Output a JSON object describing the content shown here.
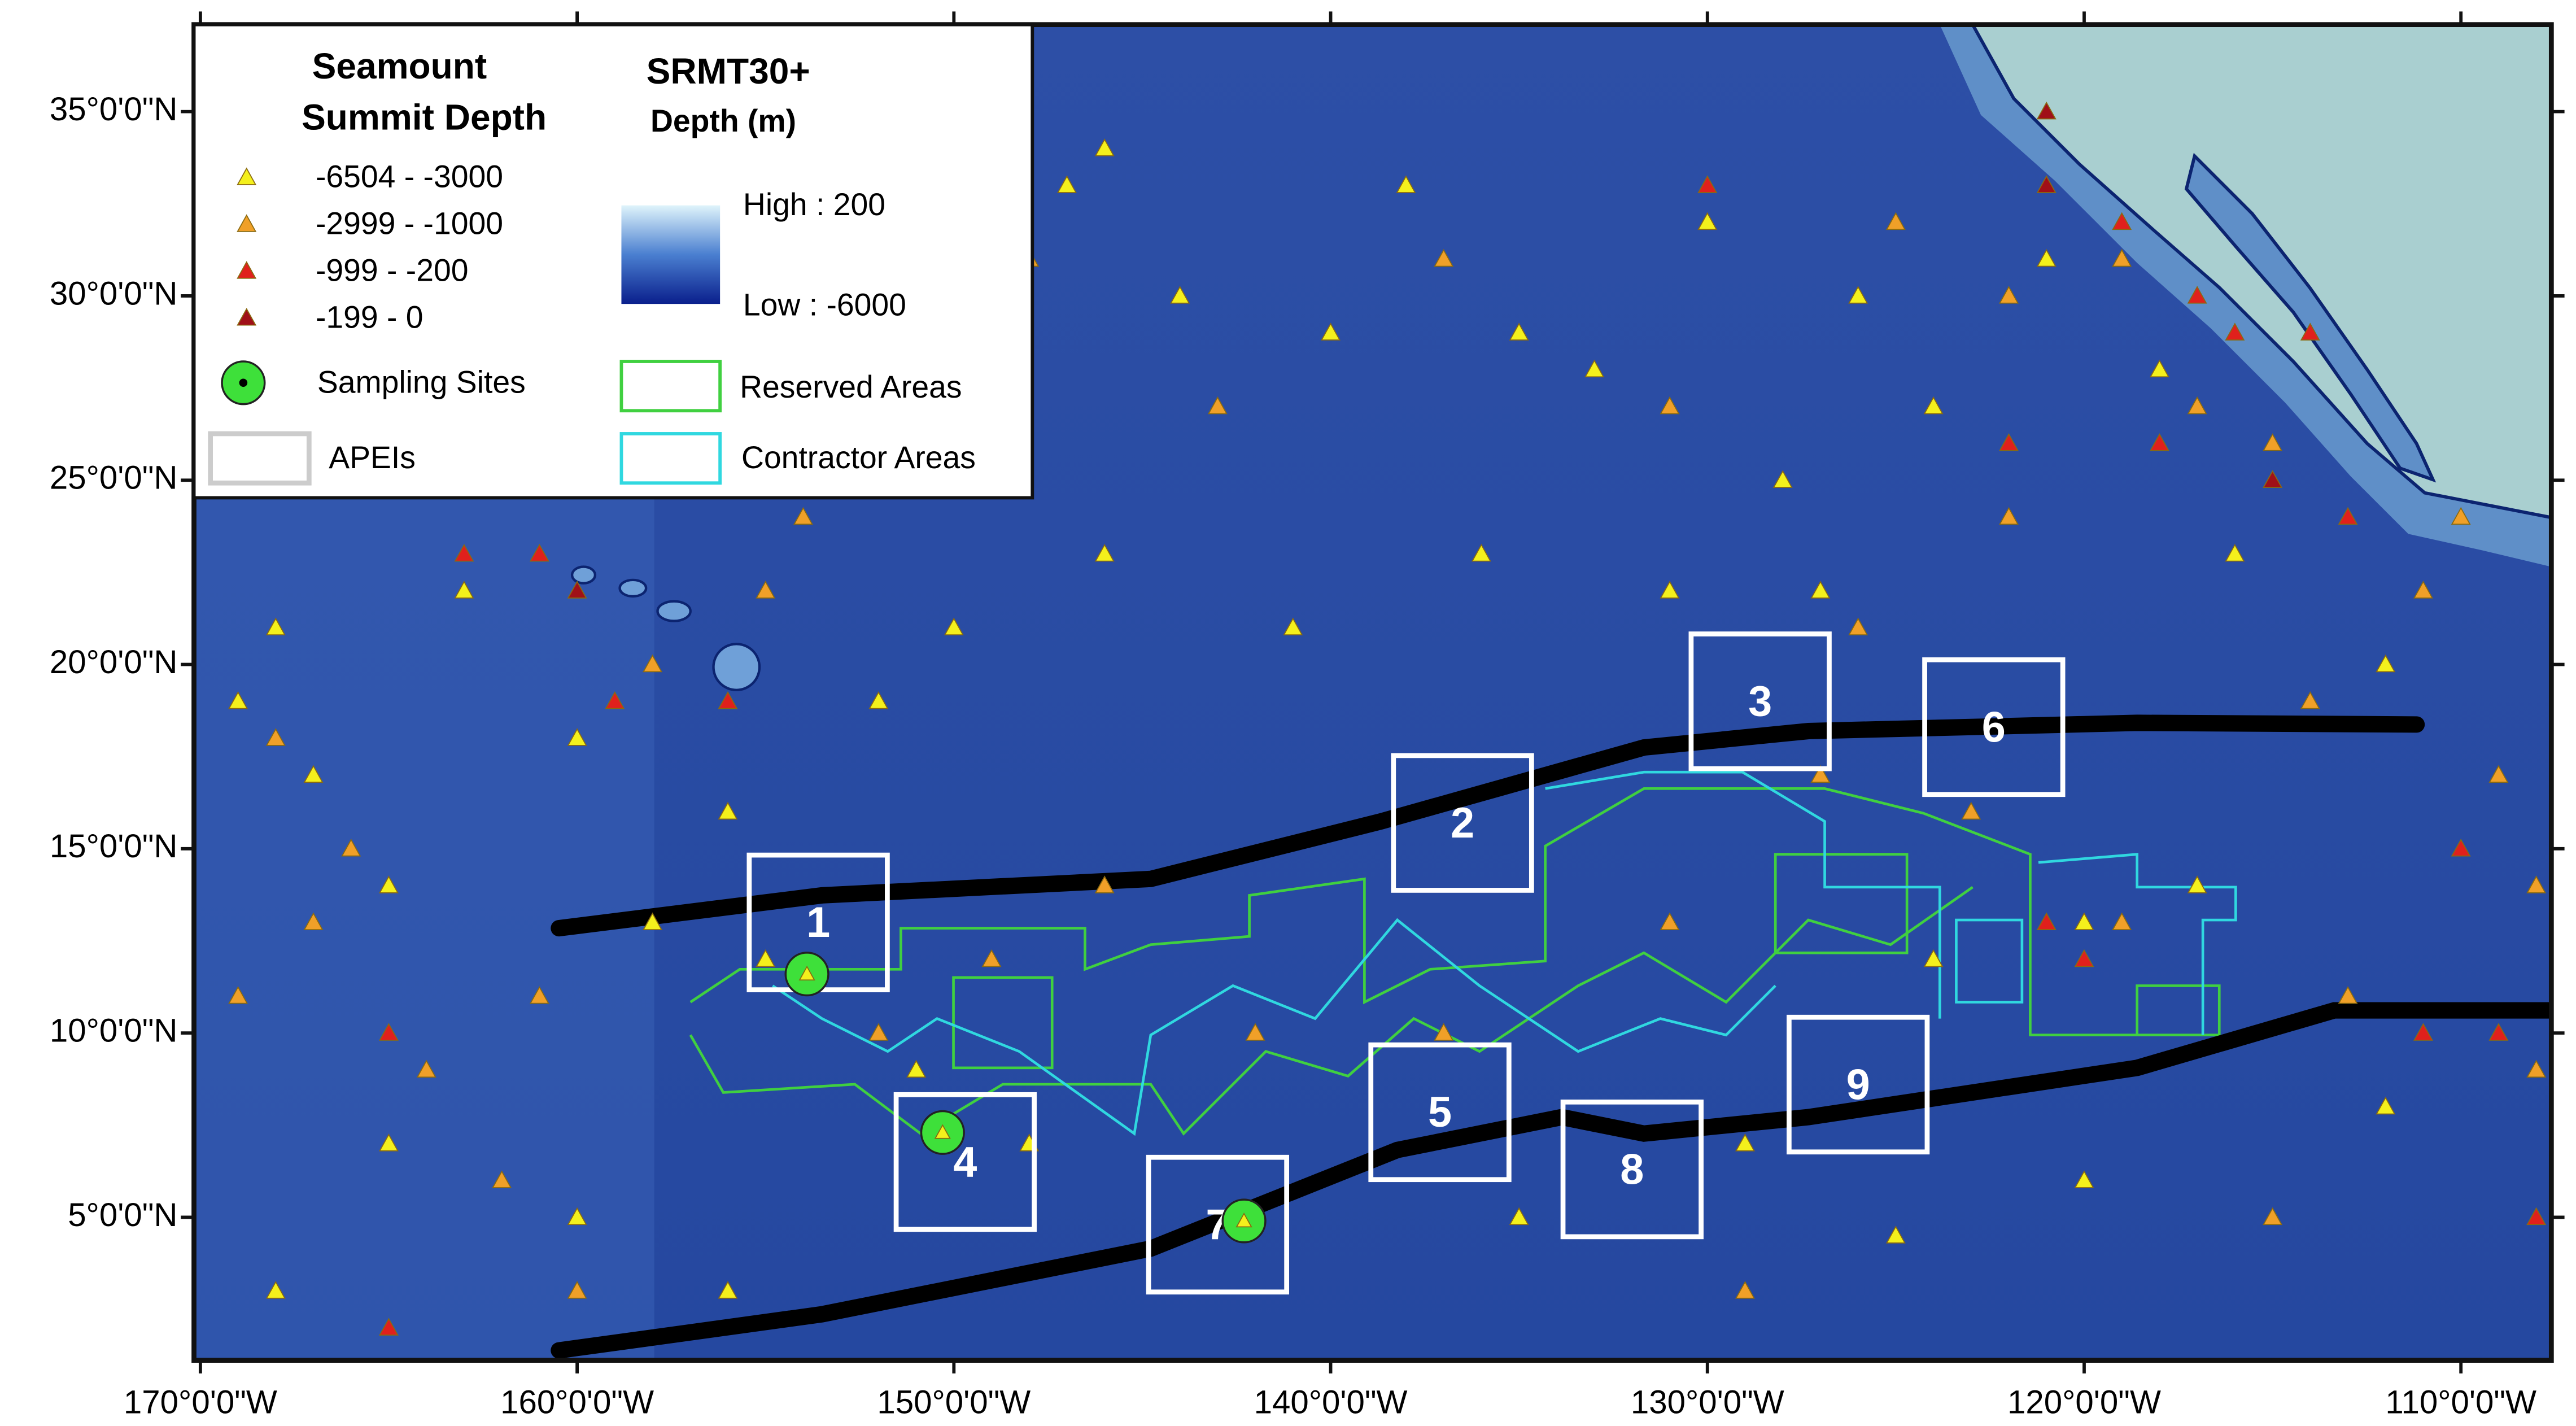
{
  "map": {
    "xlim": [
      -170.17,
      -107.6
    ],
    "ylim": [
      1.12,
      37.36
    ],
    "lon_ticks": [
      {
        "value": -170,
        "label": "170°0'0\"W"
      },
      {
        "value": -160,
        "label": "160°0'0\"W"
      },
      {
        "value": -150,
        "label": "150°0'0\"W"
      },
      {
        "value": -140,
        "label": "140°0'0\"W"
      },
      {
        "value": -130,
        "label": "130°0'0\"W"
      },
      {
        "value": -120,
        "label": "120°0'0\"W"
      },
      {
        "value": -110,
        "label": "110°0'0\"W"
      }
    ],
    "lat_ticks": [
      {
        "value": 5,
        "label": "5°0'0\"N"
      },
      {
        "value": 10,
        "label": "10°0'0\"N"
      },
      {
        "value": 15,
        "label": "15°0'0\"N"
      },
      {
        "value": 20,
        "label": "20°0'0\"N"
      },
      {
        "value": 25,
        "label": "25°0'0\"N"
      },
      {
        "value": 30,
        "label": "30°0'0\"N"
      },
      {
        "value": 35,
        "label": "35°0'0\"N"
      }
    ],
    "seamount_classes": [
      {
        "label": "-6504 - -3000",
        "color": "#f4f01c",
        "points": [
          [
            -169,
            19
          ],
          [
            -168,
            21
          ],
          [
            -167,
            17
          ],
          [
            -165,
            14
          ],
          [
            -163,
            22
          ],
          [
            -160,
            18
          ],
          [
            -158,
            13
          ],
          [
            -156,
            16
          ],
          [
            -152,
            19
          ],
          [
            -150,
            21
          ],
          [
            -147,
            33
          ],
          [
            -146,
            34
          ],
          [
            -144,
            30
          ],
          [
            -140,
            29
          ],
          [
            -138,
            33
          ],
          [
            -135,
            29
          ],
          [
            -133,
            28
          ],
          [
            -130,
            32
          ],
          [
            -128,
            25
          ],
          [
            -126,
            30
          ],
          [
            -124,
            27
          ],
          [
            -121,
            31
          ],
          [
            -118,
            28
          ],
          [
            -116,
            23
          ],
          [
            -112,
            20
          ],
          [
            -146,
            23
          ],
          [
            -141,
            21
          ],
          [
            -136,
            23
          ],
          [
            -131,
            22
          ],
          [
            -127,
            22
          ],
          [
            -124,
            12
          ],
          [
            -120,
            13
          ],
          [
            -117,
            14
          ],
          [
            -148,
            7
          ],
          [
            -151,
            9
          ],
          [
            -155,
            12
          ],
          [
            -135,
            5
          ],
          [
            -129,
            7
          ],
          [
            -125,
            4.5
          ],
          [
            -120,
            6
          ],
          [
            -112,
            8
          ],
          [
            -160,
            5
          ],
          [
            -165,
            7
          ],
          [
            -168,
            3
          ],
          [
            -156,
            3
          ]
        ]
      },
      {
        "label": "-2999 - -1000",
        "color": "#f0a028",
        "points": [
          [
            -169,
            11
          ],
          [
            -167,
            13
          ],
          [
            -164,
            9
          ],
          [
            -162,
            6
          ],
          [
            -160,
            3
          ],
          [
            -166,
            15
          ],
          [
            -168,
            18
          ],
          [
            -158,
            20
          ],
          [
            -155,
            22
          ],
          [
            -154,
            24
          ],
          [
            -148,
            31
          ],
          [
            -143,
            27
          ],
          [
            -137,
            31
          ],
          [
            -131,
            27
          ],
          [
            -125,
            32
          ],
          [
            -122,
            30
          ],
          [
            -119,
            31
          ],
          [
            -117,
            27
          ],
          [
            -115,
            26
          ],
          [
            -111,
            22
          ],
          [
            -109,
            17
          ],
          [
            -108,
            14
          ],
          [
            -113,
            11
          ],
          [
            -119,
            13
          ],
          [
            -123,
            16
          ],
          [
            -127,
            17
          ],
          [
            -131,
            13
          ],
          [
            -137,
            10
          ],
          [
            -142,
            10
          ],
          [
            -146,
            14
          ],
          [
            -149,
            12
          ],
          [
            -152,
            10
          ],
          [
            -126,
            21
          ],
          [
            -122,
            24
          ],
          [
            -114,
            19
          ],
          [
            -110,
            24
          ],
          [
            -108,
            9
          ],
          [
            -115,
            5
          ],
          [
            -129,
            3
          ],
          [
            -161,
            11
          ]
        ]
      },
      {
        "label": "-999 - -200",
        "color": "#e0201c",
        "points": [
          [
            -165,
            10
          ],
          [
            -163,
            23
          ],
          [
            -161,
            23
          ],
          [
            -159,
            19
          ],
          [
            -119,
            32
          ],
          [
            -117,
            30
          ],
          [
            -116,
            29
          ],
          [
            -114,
            29
          ],
          [
            -122,
            26
          ],
          [
            -118,
            26
          ],
          [
            -113,
            24
          ],
          [
            -110,
            15
          ],
          [
            -111,
            10
          ],
          [
            -109,
            10
          ],
          [
            -108,
            5
          ],
          [
            -120,
            12
          ],
          [
            -121,
            13
          ],
          [
            -156,
            19
          ],
          [
            -165,
            2
          ],
          [
            -130,
            33
          ]
        ]
      },
      {
        "label": "-199 - 0",
        "color": "#a01018",
        "points": [
          [
            -160,
            22
          ],
          [
            -121,
            33
          ],
          [
            -115,
            25
          ],
          [
            -121,
            35
          ]
        ]
      }
    ],
    "sampling_sites": [
      [
        -153.9,
        11.6
      ],
      [
        -150.3,
        7.3
      ],
      [
        -142.3,
        4.9
      ]
    ],
    "apeis": [
      {
        "label": "1",
        "center": [
          -153.6,
          13.0
        ]
      },
      {
        "label": "2",
        "center": [
          -136.5,
          15.7
        ]
      },
      {
        "label": "3",
        "center": [
          -128.6,
          19.0
        ]
      },
      {
        "label": "4",
        "center": [
          -149.7,
          6.5
        ]
      },
      {
        "label": "5",
        "center": [
          -137.1,
          7.85
        ]
      },
      {
        "label": "6",
        "center": [
          -122.4,
          18.3
        ]
      },
      {
        "label": "7",
        "center": [
          -143.0,
          4.8
        ]
      },
      {
        "label": "8",
        "center": [
          -132.0,
          6.3
        ]
      },
      {
        "label": "9",
        "center": [
          -126.0,
          8.6
        ]
      }
    ]
  },
  "legend": {
    "depth_title": [
      "Seamount",
      "Summit Depth"
    ],
    "srtm_title": "SRMT30+",
    "srtm_subtitle": "Depth (m)",
    "high": "High : 200",
    "low": "Low : -6000",
    "sampling_sites": "Sampling Sites",
    "apeis": "APEIs",
    "reserved": "Reserved Areas",
    "contractor": "Contractor Areas"
  }
}
